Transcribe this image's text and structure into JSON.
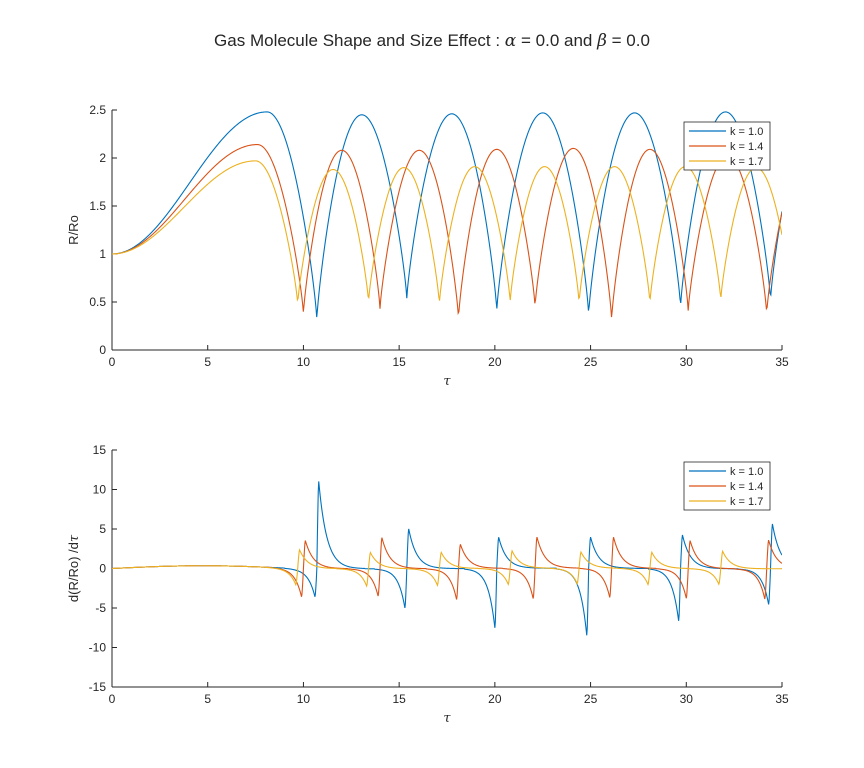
{
  "figure": {
    "title_parts": [
      "Gas Molecule Shape and Size Effect : ",
      "α",
      " = 0.0 and ",
      "β",
      " = 0.0"
    ]
  },
  "chart_data": [
    {
      "type": "line",
      "xlabel": "τ",
      "ylabel": "R/Ro",
      "xlim": [
        0,
        35
      ],
      "ylim": [
        0,
        2.5
      ],
      "xticks": [
        0,
        5,
        10,
        15,
        20,
        25,
        30,
        35
      ],
      "yticks": [
        0,
        0.5,
        1,
        1.5,
        2,
        2.5
      ],
      "xtick_labels": [
        "0",
        "5",
        "10",
        "15",
        "20",
        "25",
        "30",
        "35"
      ],
      "ytick_labels": [
        "0",
        "0.5",
        "1",
        "1.5",
        "2",
        "2.5"
      ],
      "grid": false,
      "legend_position": "top-right",
      "series": [
        {
          "name": "k = 1.0",
          "color": "#0072BD",
          "first_peak": [
            8.1,
            2.48
          ],
          "peaks": [
            [
              13.0,
              2.45
            ],
            [
              17.8,
              2.46
            ],
            [
              22.5,
              2.47
            ],
            [
              27.3,
              2.47
            ],
            [
              32.0,
              2.48
            ]
          ],
          "minima": [
            [
              10.7,
              0.32
            ],
            [
              15.4,
              0.54
            ],
            [
              20.1,
              0.41
            ],
            [
              24.9,
              0.37
            ],
            [
              29.7,
              0.45
            ],
            [
              34.4,
              0.52
            ]
          ],
          "end_value": 1.67
        },
        {
          "name": "k = 1.4",
          "color": "#D95319",
          "first_peak": [
            7.6,
            2.14
          ],
          "peaks": [
            [
              12.0,
              2.08
            ],
            [
              16.0,
              2.08
            ],
            [
              20.1,
              2.09
            ],
            [
              24.2,
              2.1
            ],
            [
              28.1,
              2.09
            ],
            [
              31.8,
              2.02
            ]
          ],
          "minima": [
            [
              10.0,
              0.38
            ],
            [
              14.0,
              0.43
            ],
            [
              18.1,
              0.33
            ],
            [
              22.1,
              0.45
            ],
            [
              26.1,
              0.32
            ],
            [
              30.1,
              0.41
            ],
            [
              34.2,
              0.38
            ]
          ],
          "end_value": 1.62
        },
        {
          "name": "k = 1.7",
          "color": "#EDB120",
          "first_peak": [
            7.5,
            1.97
          ],
          "peaks": [
            [
              11.6,
              1.88
            ],
            [
              15.1,
              1.9
            ],
            [
              18.9,
              1.91
            ],
            [
              22.5,
              1.91
            ],
            [
              26.2,
              1.91
            ],
            [
              29.8,
              1.91
            ],
            [
              33.2,
              1.9
            ]
          ],
          "minima": [
            [
              9.7,
              0.48
            ],
            [
              13.4,
              0.5
            ],
            [
              17.1,
              0.48
            ],
            [
              20.8,
              0.5
            ],
            [
              24.4,
              0.49
            ],
            [
              28.1,
              0.49
            ],
            [
              31.8,
              0.52
            ]
          ],
          "end_value": 1.33
        }
      ]
    },
    {
      "type": "line",
      "xlabel": "τ",
      "ylabel_parts": [
        "d(R/Ro) /d",
        "τ"
      ],
      "xlim": [
        0,
        35
      ],
      "ylim": [
        -15,
        15
      ],
      "xticks": [
        0,
        5,
        10,
        15,
        20,
        25,
        30,
        35
      ],
      "yticks": [
        -15,
        -10,
        -5,
        0,
        5,
        10,
        15
      ],
      "xtick_labels": [
        "0",
        "5",
        "10",
        "15",
        "20",
        "25",
        "30",
        "35"
      ],
      "ytick_labels": [
        "-15",
        "-10",
        "-5",
        "0",
        "5",
        "10",
        "15"
      ],
      "grid": false,
      "legend_position": "top-right",
      "series": [
        {
          "name": "k = 1.0",
          "color": "#0072BD",
          "spikes": [
            [
              10.7,
              -4.6,
              14.0
            ],
            [
              15.4,
              -6.6,
              6.4
            ],
            [
              20.1,
              -10.0,
              5.0
            ],
            [
              24.9,
              -11.3,
              5.0
            ],
            [
              29.7,
              -8.8,
              5.4
            ],
            [
              34.4,
              -6.0,
              7.2
            ]
          ]
        },
        {
          "name": "k = 1.4",
          "color": "#D95319",
          "spikes": [
            [
              10.0,
              -4.7,
              4.5
            ],
            [
              14.0,
              -4.6,
              5.0
            ],
            [
              18.1,
              -5.2,
              3.9
            ],
            [
              22.1,
              -5.1,
              5.0
            ],
            [
              26.1,
              -4.9,
              5.0
            ],
            [
              30.1,
              -5.0,
              4.5
            ],
            [
              34.2,
              -5.1,
              4.6
            ]
          ]
        },
        {
          "name": "k = 1.7",
          "color": "#EDB120",
          "spikes": [
            [
              9.7,
              -2.7,
              3.0
            ],
            [
              13.4,
              -2.9,
              2.6
            ],
            [
              17.1,
              -2.8,
              2.6
            ],
            [
              20.8,
              -2.7,
              2.8
            ],
            [
              24.4,
              -2.6,
              2.6
            ],
            [
              28.1,
              -2.7,
              2.6
            ],
            [
              31.8,
              -2.6,
              2.8
            ]
          ]
        }
      ]
    }
  ]
}
